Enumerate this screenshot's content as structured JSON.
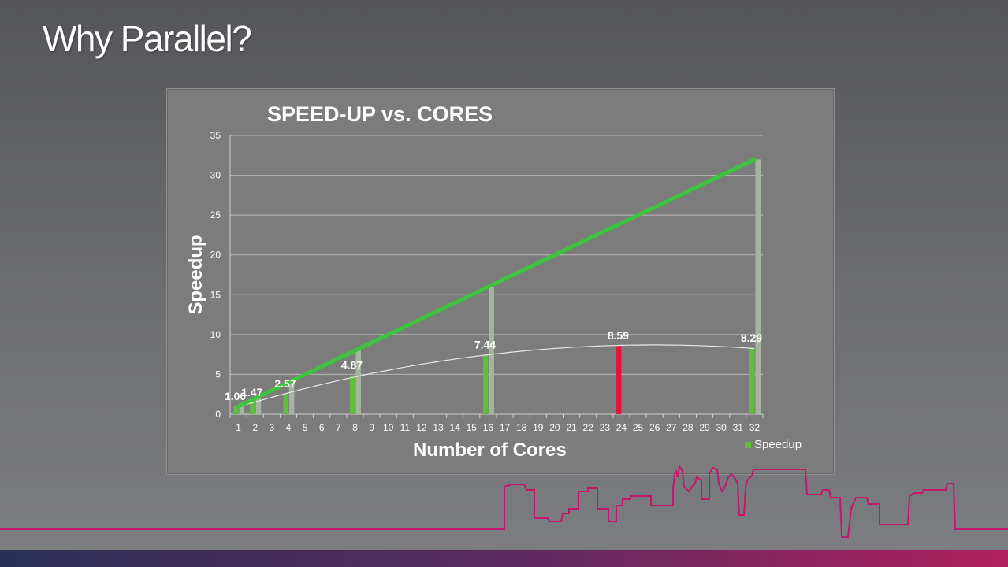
{
  "slide": {
    "title": "Why Parallel?"
  },
  "colors": {
    "bar": "#5fbf3c",
    "highlight_bar": "#e0143c",
    "ideal_bar": "#a8b4a2",
    "ideal_line": "#3cc43c",
    "trend_line": "#e8e8e8",
    "skyline": "#c2186c"
  },
  "chart_data": {
    "type": "bar",
    "title": "SPEED-UP vs. CORES",
    "xlabel": "Number of Cores",
    "ylabel": "Speedup",
    "categories": [
      "1",
      "2",
      "3",
      "4",
      "5",
      "6",
      "7",
      "8",
      "9",
      "10",
      "11",
      "12",
      "13",
      "14",
      "15",
      "16",
      "17",
      "18",
      "19",
      "20",
      "21",
      "22",
      "23",
      "24",
      "25",
      "26",
      "27",
      "28",
      "29",
      "30",
      "31",
      "32"
    ],
    "ylim": [
      0,
      35
    ],
    "yticks": [
      0,
      5,
      10,
      15,
      20,
      25,
      30,
      35
    ],
    "grid": true,
    "legend_position": "bottom-right",
    "series": [
      {
        "name": "Speedup",
        "points": [
          {
            "x": 1,
            "y": 1.0,
            "label": "1.00"
          },
          {
            "x": 2,
            "y": 1.47,
            "label": "1.47"
          },
          {
            "x": 4,
            "y": 2.57,
            "label": "2.57"
          },
          {
            "x": 8,
            "y": 4.87,
            "label": "4.87"
          },
          {
            "x": 16,
            "y": 7.44,
            "label": "7.44"
          },
          {
            "x": 24,
            "y": 8.59,
            "label": "8.59",
            "highlight": true
          },
          {
            "x": 32,
            "y": 8.29,
            "label": "8.29"
          }
        ]
      },
      {
        "points": [
          {
            "x": 1,
            "y": 1
          },
          {
            "x": 2,
            "y": 2
          },
          {
            "x": 4,
            "y": 4
          },
          {
            "x": 8,
            "y": 8
          },
          {
            "x": 16,
            "y": 16
          },
          {
            "x": 32,
            "y": 32
          }
        ]
      }
    ],
    "ideal_line": [
      [
        1,
        1
      ],
      [
        32,
        32
      ]
    ],
    "trend_curve": "polynomial fit of Speedup"
  }
}
